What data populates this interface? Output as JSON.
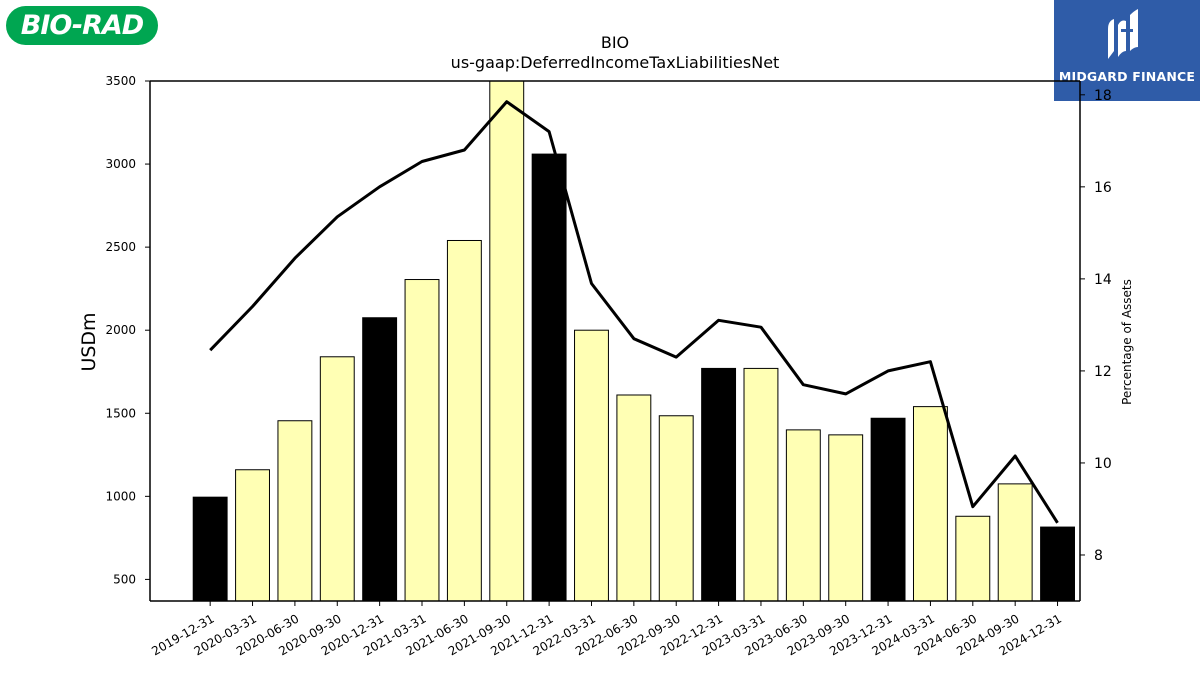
{
  "logos": {
    "left_text": "BIO-RAD",
    "right_text": "MIDGARD FINANCE",
    "left_color": "#00a651",
    "right_color": "#2f5ca8"
  },
  "chart_data": {
    "type": "bar",
    "title": "BIO",
    "subtitle": "us-gaap:DeferredIncomeTaxLiabilitiesNet",
    "ylabel": "USDm",
    "y2label": "Percentage of Assets",
    "ylim": [
      370,
      3500
    ],
    "y2lim": [
      7.0,
      18.3
    ],
    "yticks": [
      500,
      1000,
      1500,
      2000,
      2500,
      3000,
      3500
    ],
    "y2ticks": [
      8,
      10,
      12,
      14,
      16,
      18
    ],
    "categories": [
      "2019-12-31",
      "2020-03-31",
      "2020-06-30",
      "2020-09-30",
      "2020-12-31",
      "2021-03-31",
      "2021-06-30",
      "2021-09-30",
      "2021-12-31",
      "2022-03-31",
      "2022-06-30",
      "2022-09-30",
      "2022-12-31",
      "2023-03-31",
      "2023-06-30",
      "2023-09-30",
      "2023-12-31",
      "2024-03-31",
      "2024-06-30",
      "2024-09-30",
      "2024-12-31"
    ],
    "series": [
      {
        "type": "bar",
        "axis": "left",
        "values": [
          995,
          1160,
          1455,
          1840,
          2075,
          2305,
          2540,
          3510,
          3060,
          2000,
          1610,
          1485,
          1770,
          1770,
          1400,
          1370,
          1470,
          1540,
          880,
          1075,
          815
        ],
        "annual_color": "#000000",
        "quarterly_color": "#ffffb4",
        "annual_indices": [
          0,
          4,
          8,
          12,
          16,
          20
        ]
      },
      {
        "type": "line",
        "axis": "right",
        "color": "#000000",
        "values": [
          12.45,
          13.4,
          14.45,
          15.35,
          16.0,
          16.55,
          16.8,
          17.85,
          17.2,
          13.9,
          12.7,
          12.3,
          13.1,
          12.95,
          11.7,
          11.5,
          12.0,
          12.2,
          9.05,
          10.15,
          8.7
        ]
      }
    ],
    "grid": false,
    "legend": "none"
  }
}
